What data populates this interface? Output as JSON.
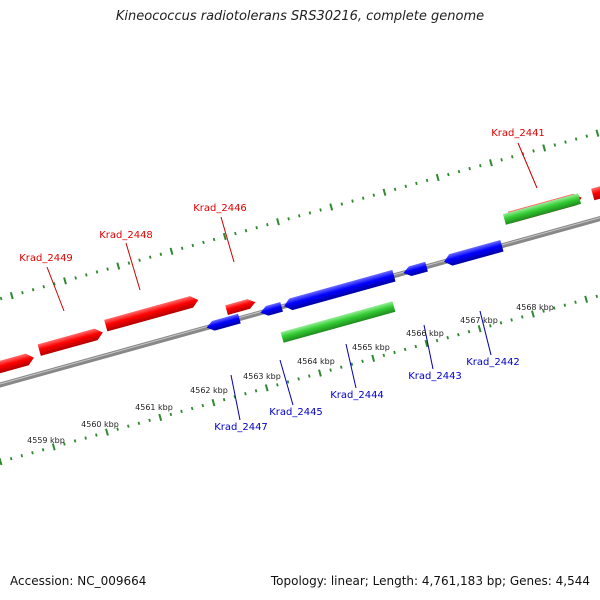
{
  "title": "Kineococcus radiotolerans SRS30216, complete genome",
  "footer": {
    "accession": "Accession: NC_009664",
    "summary": "Topology: linear; Length: 4,761,183 bp; Genes: 4,544"
  },
  "colors": {
    "plus_gene": "#ff0000",
    "minus_gene": "#0000ff",
    "rna_gene": "#33cc33",
    "leader_plus": "#cc0000",
    "leader_minus": "#0000aa",
    "ticks": "#2f8a2f",
    "backbone": "#888888"
  },
  "kbp_labels": [
    "4559 kbp",
    "4560 kbp",
    "4561 kbp",
    "4562 kbp",
    "4563 kbp",
    "4564 kbp",
    "4565 kbp",
    "4566 kbp",
    "4567 kbp",
    "4568 kbp"
  ],
  "gene_labels": [
    {
      "id": "g2449",
      "text": "Krad_2449",
      "strand": "plus"
    },
    {
      "id": "g2448",
      "text": "Krad_2448",
      "strand": "plus"
    },
    {
      "id": "g2446",
      "text": "Krad_2446",
      "strand": "plus"
    },
    {
      "id": "g2441",
      "text": "Krad_2441",
      "strand": "plus"
    },
    {
      "id": "g2447",
      "text": "Krad_2447",
      "strand": "minus"
    },
    {
      "id": "g2445",
      "text": "Krad_2445",
      "strand": "minus"
    },
    {
      "id": "g2444",
      "text": "Krad_2444",
      "strand": "minus"
    },
    {
      "id": "g2443",
      "text": "Krad_2443",
      "strand": "minus"
    },
    {
      "id": "g2442",
      "text": "Krad_2442",
      "strand": "minus"
    }
  ]
}
